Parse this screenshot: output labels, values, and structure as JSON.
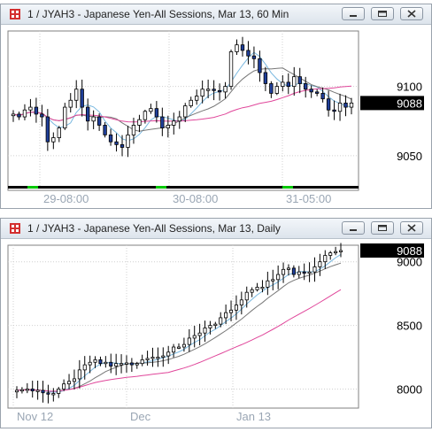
{
  "colors": {
    "candle_up_body": "#ffffff",
    "candle_down_body": "#1f3f9a",
    "ma_fast": "#79b8e0",
    "ma_medium": "#777777",
    "ma_slow": "#e0469a",
    "last_price_box": "#000000",
    "session_bar_active": "#00c800"
  },
  "windows": [
    {
      "title": "1 / JYAH3 - Japanese Yen-All Sessions, Mar 13, 60 Min",
      "buttons": [
        "minimize",
        "restore",
        "close"
      ]
    },
    {
      "title": "1 / JYAH3 - Japanese Yen-All Sessions, Mar 13, Daily",
      "buttons": [
        "minimize",
        "restore",
        "close"
      ]
    }
  ],
  "chart_data": [
    {
      "type": "candlestick",
      "interval": "60 Min",
      "ylim": [
        9025,
        9140
      ],
      "y_ticks": [
        9100,
        9050
      ],
      "y_tick_labels": [
        "9100",
        "9050"
      ],
      "x_tick_labels": [
        "29-08:00",
        "30-08:00",
        "31-05:00"
      ],
      "last_price": "9088",
      "grid": true,
      "closes": [
        9080,
        9078,
        9083,
        9085,
        9080,
        9078,
        9060,
        9063,
        9070,
        9085,
        9090,
        9098,
        9085,
        9075,
        9078,
        9072,
        9065,
        9060,
        9058,
        9056,
        9065,
        9072,
        9076,
        9082,
        9084,
        9078,
        9070,
        9072,
        9075,
        9078,
        9086,
        9090,
        9093,
        9098,
        9098,
        9097,
        9096,
        9100,
        9125,
        9130,
        9126,
        9122,
        9120,
        9110,
        9102,
        9095,
        9100,
        9103,
        9100,
        9107,
        9102,
        9098,
        9096,
        9095,
        9091,
        9083,
        9082,
        9088,
        9085,
        9088
      ],
      "overlays": [
        "moving average (fast)",
        "moving average (medium)",
        "moving average (slow)"
      ]
    },
    {
      "type": "candlestick",
      "interval": "Daily",
      "ylim": [
        7850,
        9130
      ],
      "y_ticks": [
        9000,
        8500,
        8000
      ],
      "y_tick_labels": [
        "9000",
        "8500",
        "8000"
      ],
      "x_tick_labels": [
        "Nov 12",
        "Dec",
        "Jan 13"
      ],
      "last_price": "9088",
      "grid": true,
      "closes": [
        7990,
        7995,
        8000,
        7985,
        7990,
        7970,
        7960,
        7965,
        8000,
        8040,
        8060,
        8080,
        8150,
        8190,
        8210,
        8230,
        8200,
        8210,
        8180,
        8200,
        8200,
        8205,
        8190,
        8200,
        8230,
        8240,
        8250,
        8250,
        8260,
        8290,
        8330,
        8330,
        8350,
        8400,
        8420,
        8440,
        8480,
        8500,
        8510,
        8560,
        8600,
        8620,
        8660,
        8700,
        8760,
        8780,
        8800,
        8800,
        8850,
        8860,
        8900,
        8940,
        8950,
        8900,
        8920,
        8910,
        8920,
        8960,
        9000,
        9050,
        9070,
        9080,
        9088
      ],
      "overlays": [
        "moving average (fast)",
        "moving average (medium)",
        "moving average (slow)"
      ]
    }
  ]
}
